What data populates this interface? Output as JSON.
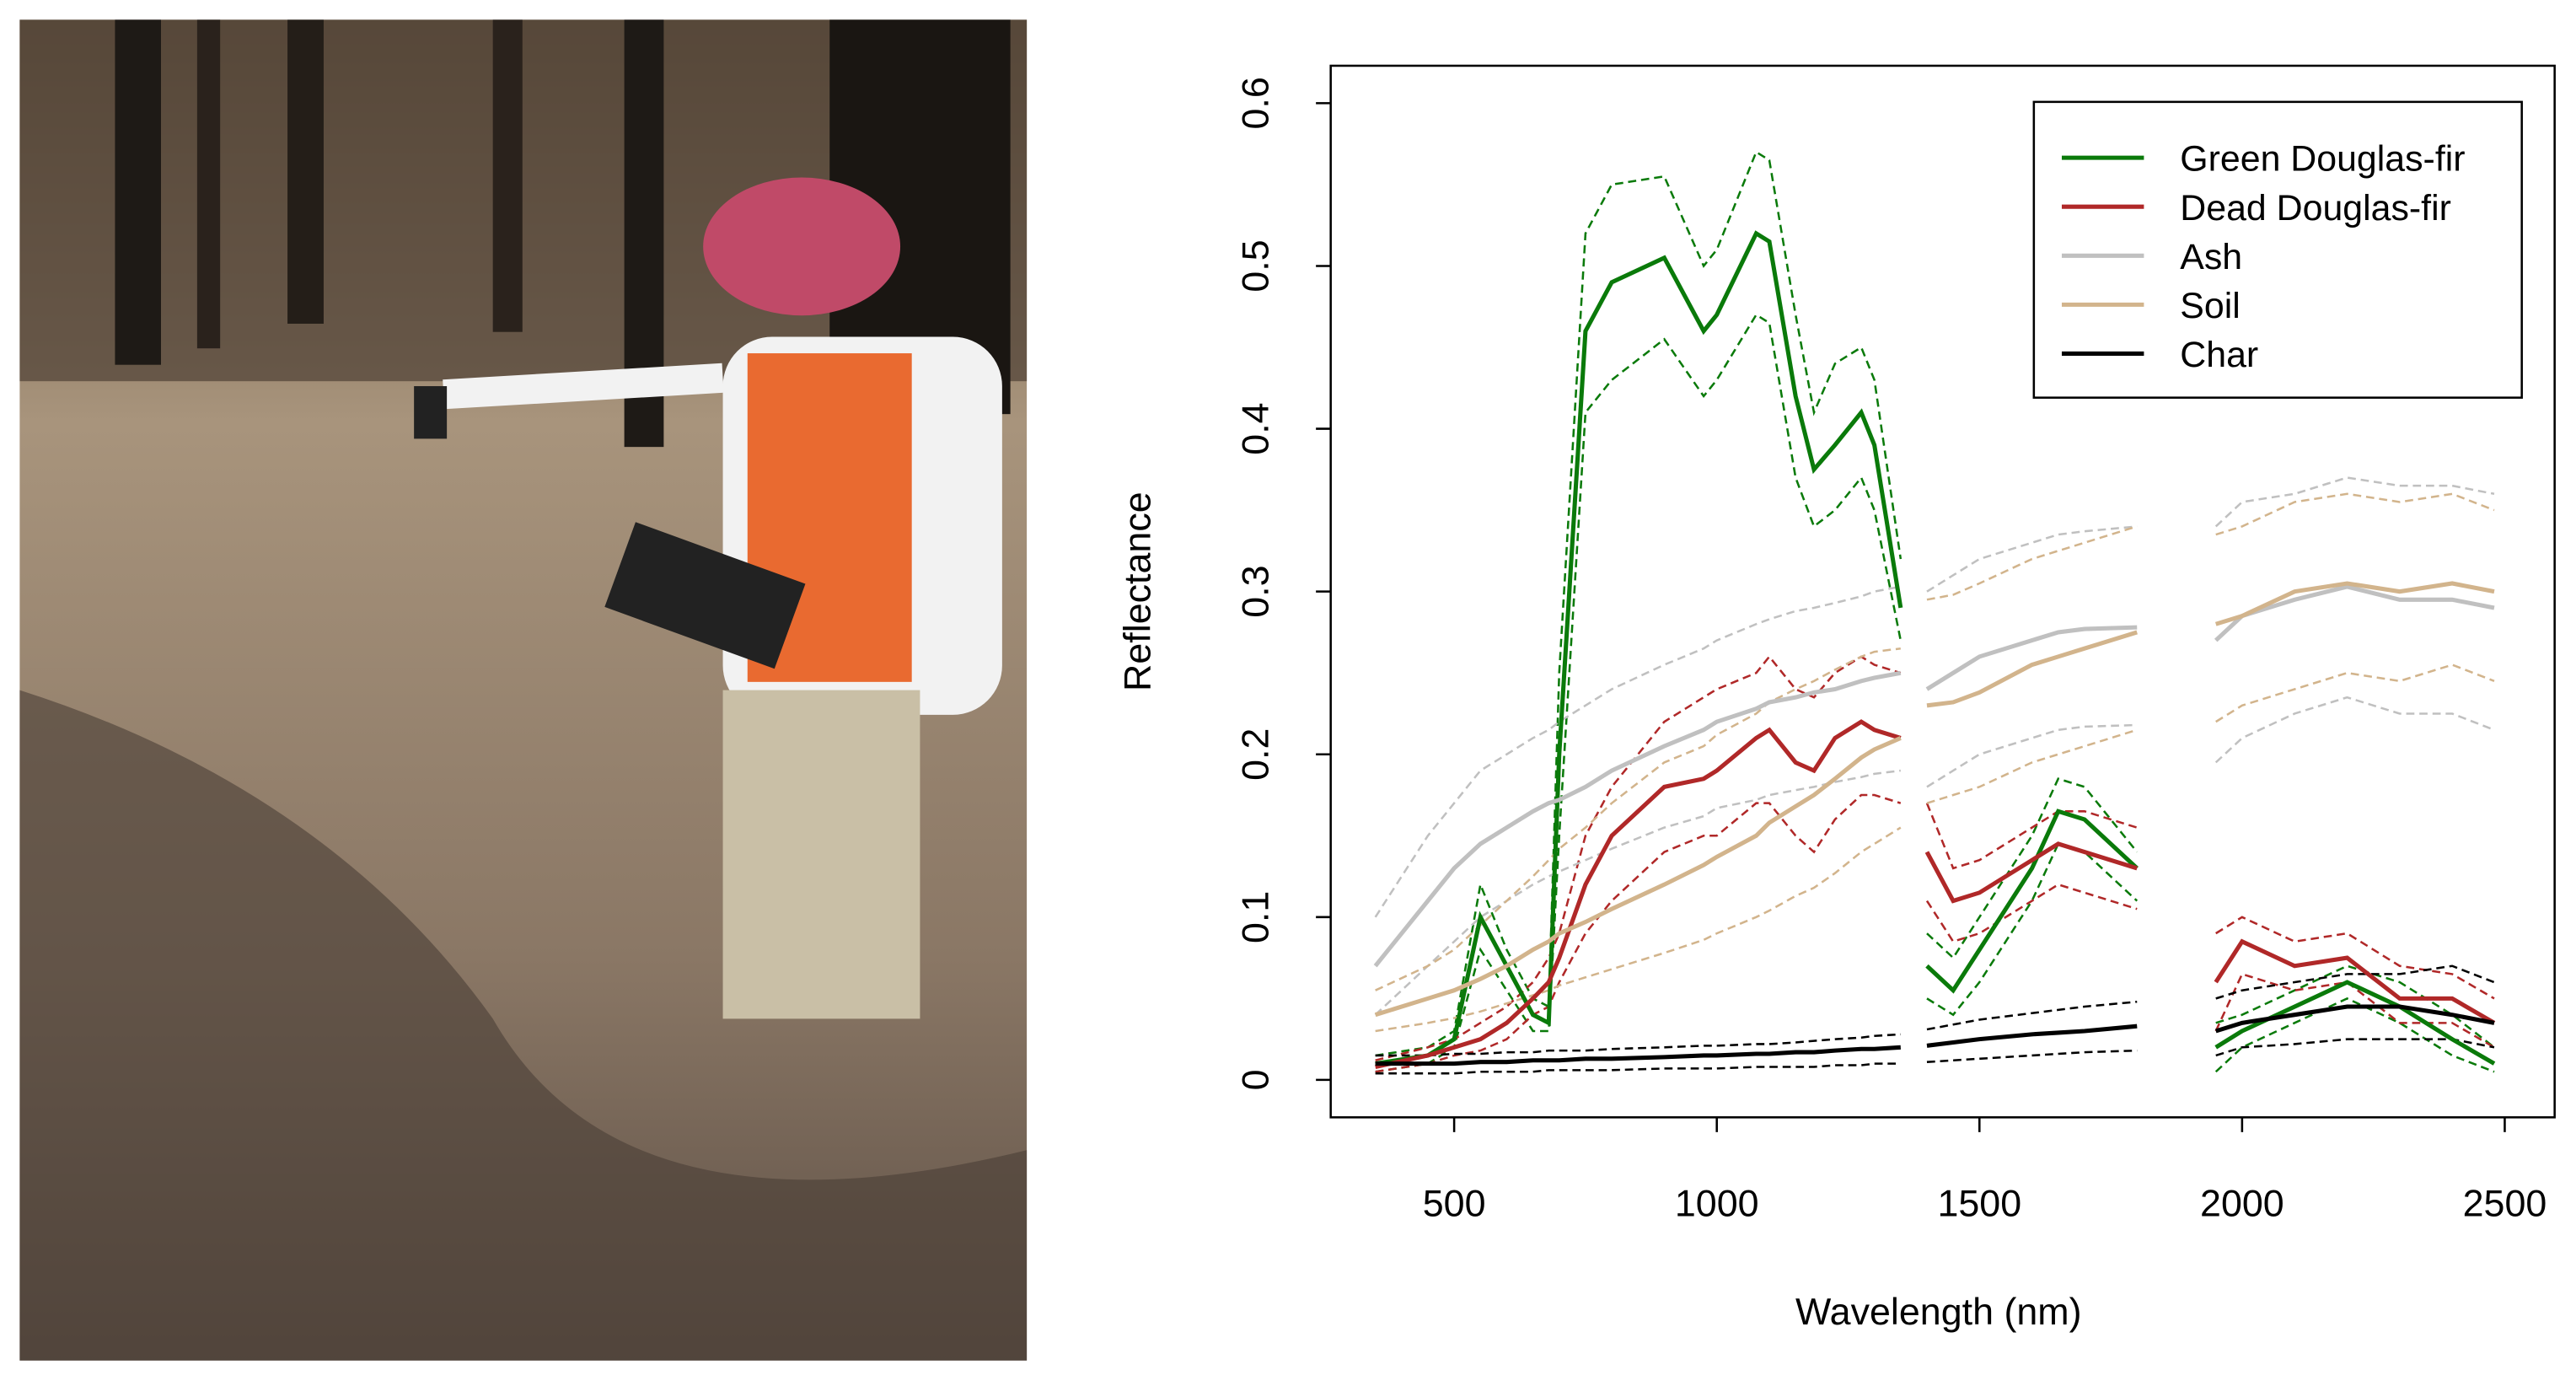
{
  "chart_data": {
    "type": "line",
    "xlabel": "Wavelength (nm)",
    "ylabel": "Reflectance",
    "x": [
      350,
      450,
      500,
      550,
      600,
      650,
      680,
      700,
      750,
      800,
      900,
      975,
      1000,
      1075,
      1100,
      1150,
      1185,
      1225,
      1275,
      1300,
      1350,
      1375,
      1400,
      1450,
      1500,
      1600,
      1650,
      1700,
      1800,
      1875,
      1950,
      2000,
      2100,
      2200,
      2300,
      2400,
      2480
    ],
    "xlim": [
      265,
      2595
    ],
    "xticks": [
      500,
      1000,
      1500,
      2000,
      2500
    ],
    "ylim": [
      -0.023,
      0.623
    ],
    "yticks": [
      0.0,
      0.1,
      0.2,
      0.3,
      0.4,
      0.5,
      0.6
    ],
    "legend": "top-right",
    "series": [
      {
        "name": "Green Douglas-fir",
        "color": "#0a7a0a",
        "values": [
          0.01,
          0.015,
          0.025,
          0.1,
          0.07,
          0.04,
          0.035,
          0.2,
          0.46,
          0.49,
          0.505,
          0.46,
          0.47,
          0.52,
          0.515,
          0.42,
          0.375,
          0.39,
          0.41,
          0.39,
          0.29,
          null,
          0.07,
          0.055,
          0.08,
          0.13,
          0.165,
          0.16,
          0.13,
          null,
          0.02,
          0.03,
          0.045,
          0.06,
          0.045,
          0.025,
          0.01
        ],
        "upper": [
          0.015,
          0.02,
          0.03,
          0.12,
          0.08,
          0.05,
          0.045,
          0.25,
          0.52,
          0.55,
          0.555,
          0.5,
          0.51,
          0.57,
          0.565,
          0.47,
          0.41,
          0.44,
          0.45,
          0.43,
          0.32,
          null,
          0.09,
          0.075,
          0.1,
          0.15,
          0.185,
          0.18,
          0.14,
          null,
          0.035,
          0.04,
          0.055,
          0.07,
          0.06,
          0.04,
          0.02
        ],
        "lower": [
          0.005,
          0.01,
          0.02,
          0.08,
          0.055,
          0.03,
          0.03,
          0.15,
          0.41,
          0.43,
          0.455,
          0.42,
          0.43,
          0.47,
          0.465,
          0.37,
          0.34,
          0.35,
          0.37,
          0.35,
          0.27,
          null,
          0.05,
          0.04,
          0.06,
          0.11,
          0.145,
          0.14,
          0.11,
          null,
          0.005,
          0.02,
          0.035,
          0.05,
          0.035,
          0.015,
          0.005
        ]
      },
      {
        "name": "Dead Douglas-fir",
        "color": "#b02828",
        "values": [
          0.008,
          0.015,
          0.02,
          0.025,
          0.035,
          0.05,
          0.06,
          0.075,
          0.12,
          0.15,
          0.18,
          0.185,
          0.19,
          0.21,
          0.215,
          0.195,
          0.19,
          0.21,
          0.22,
          0.215,
          0.21,
          null,
          0.14,
          0.11,
          0.115,
          0.135,
          0.145,
          0.14,
          0.13,
          null,
          0.06,
          0.085,
          0.07,
          0.075,
          0.05,
          0.05,
          0.035
        ],
        "upper": [
          0.012,
          0.02,
          0.025,
          0.035,
          0.045,
          0.06,
          0.075,
          0.09,
          0.15,
          0.18,
          0.22,
          0.235,
          0.24,
          0.25,
          0.26,
          0.24,
          0.235,
          0.25,
          0.26,
          0.255,
          0.25,
          null,
          0.17,
          0.13,
          0.135,
          0.155,
          0.165,
          0.165,
          0.155,
          null,
          0.09,
          0.1,
          0.085,
          0.09,
          0.07,
          0.065,
          0.05
        ],
        "lower": [
          0.005,
          0.01,
          0.015,
          0.018,
          0.025,
          0.04,
          0.045,
          0.06,
          0.09,
          0.11,
          0.14,
          0.15,
          0.15,
          0.17,
          0.17,
          0.15,
          0.14,
          0.16,
          0.175,
          0.175,
          0.17,
          null,
          0.11,
          0.085,
          0.09,
          0.11,
          0.12,
          0.115,
          0.105,
          null,
          0.03,
          0.065,
          0.055,
          0.06,
          0.035,
          0.035,
          0.02
        ]
      },
      {
        "name": "Ash",
        "color": "#c0c0c0",
        "values": [
          0.07,
          0.11,
          0.13,
          0.145,
          0.155,
          0.165,
          0.17,
          0.172,
          0.18,
          0.19,
          0.205,
          0.215,
          0.22,
          0.228,
          0.232,
          0.235,
          0.238,
          0.24,
          0.245,
          0.247,
          0.25,
          null,
          0.24,
          0.25,
          0.26,
          0.27,
          0.275,
          0.277,
          0.278,
          null,
          0.27,
          0.285,
          0.295,
          0.303,
          0.295,
          0.295,
          0.29
        ],
        "upper": [
          0.1,
          0.15,
          0.17,
          0.19,
          0.2,
          0.21,
          0.215,
          0.22,
          0.23,
          0.24,
          0.255,
          0.265,
          0.27,
          0.28,
          0.283,
          0.288,
          0.29,
          0.293,
          0.297,
          0.3,
          0.303,
          null,
          0.3,
          0.31,
          0.32,
          0.33,
          0.335,
          0.337,
          0.34,
          null,
          0.34,
          0.355,
          0.36,
          0.37,
          0.365,
          0.365,
          0.36
        ],
        "lower": [
          0.04,
          0.07,
          0.085,
          0.1,
          0.11,
          0.12,
          0.125,
          0.128,
          0.135,
          0.142,
          0.155,
          0.162,
          0.167,
          0.172,
          0.175,
          0.178,
          0.18,
          0.183,
          0.186,
          0.188,
          0.19,
          null,
          0.18,
          0.19,
          0.2,
          0.21,
          0.215,
          0.217,
          0.218,
          null,
          0.195,
          0.21,
          0.225,
          0.235,
          0.225,
          0.225,
          0.215
        ]
      },
      {
        "name": "Soil",
        "color": "#d2b48c",
        "values": [
          0.04,
          0.05,
          0.055,
          0.062,
          0.07,
          0.08,
          0.085,
          0.09,
          0.097,
          0.105,
          0.12,
          0.132,
          0.137,
          0.15,
          0.158,
          0.168,
          0.175,
          0.185,
          0.198,
          0.203,
          0.21,
          null,
          0.23,
          0.232,
          0.238,
          0.255,
          0.26,
          0.265,
          0.275,
          null,
          0.28,
          0.285,
          0.3,
          0.305,
          0.3,
          0.305,
          0.3
        ],
        "upper": [
          0.055,
          0.07,
          0.08,
          0.095,
          0.11,
          0.125,
          0.135,
          0.142,
          0.155,
          0.17,
          0.195,
          0.205,
          0.212,
          0.225,
          0.232,
          0.24,
          0.245,
          0.252,
          0.26,
          0.263,
          0.265,
          null,
          0.295,
          0.298,
          0.305,
          0.32,
          0.325,
          0.33,
          0.34,
          null,
          0.335,
          0.34,
          0.355,
          0.36,
          0.355,
          0.36,
          0.35
        ],
        "lower": [
          0.03,
          0.035,
          0.038,
          0.042,
          0.047,
          0.052,
          0.055,
          0.058,
          0.063,
          0.068,
          0.078,
          0.086,
          0.09,
          0.1,
          0.104,
          0.113,
          0.118,
          0.127,
          0.14,
          0.145,
          0.155,
          null,
          0.17,
          0.175,
          0.18,
          0.195,
          0.2,
          0.205,
          0.215,
          null,
          0.22,
          0.23,
          0.24,
          0.25,
          0.245,
          0.255,
          0.245
        ]
      },
      {
        "name": "Char",
        "color": "#000000",
        "values": [
          0.01,
          0.01,
          0.01,
          0.011,
          0.011,
          0.012,
          0.012,
          0.012,
          0.013,
          0.013,
          0.014,
          0.015,
          0.015,
          0.016,
          0.016,
          0.017,
          0.017,
          0.018,
          0.019,
          0.019,
          0.02,
          null,
          0.021,
          0.023,
          0.025,
          0.028,
          0.029,
          0.03,
          0.033,
          null,
          0.03,
          0.035,
          0.04,
          0.045,
          0.045,
          0.04,
          0.035
        ],
        "upper": [
          0.015,
          0.015,
          0.016,
          0.016,
          0.017,
          0.017,
          0.018,
          0.018,
          0.018,
          0.019,
          0.02,
          0.021,
          0.021,
          0.022,
          0.022,
          0.023,
          0.024,
          0.025,
          0.026,
          0.027,
          0.028,
          null,
          0.031,
          0.034,
          0.037,
          0.041,
          0.043,
          0.045,
          0.048,
          null,
          0.05,
          0.055,
          0.06,
          0.065,
          0.065,
          0.07,
          0.06
        ],
        "lower": [
          0.004,
          0.004,
          0.004,
          0.005,
          0.005,
          0.005,
          0.006,
          0.006,
          0.006,
          0.006,
          0.007,
          0.007,
          0.007,
          0.008,
          0.008,
          0.008,
          0.008,
          0.009,
          0.009,
          0.01,
          0.01,
          null,
          0.011,
          0.012,
          0.013,
          0.015,
          0.016,
          0.017,
          0.018,
          null,
          0.015,
          0.02,
          0.022,
          0.025,
          0.025,
          0.025,
          0.02
        ]
      }
    ]
  }
}
